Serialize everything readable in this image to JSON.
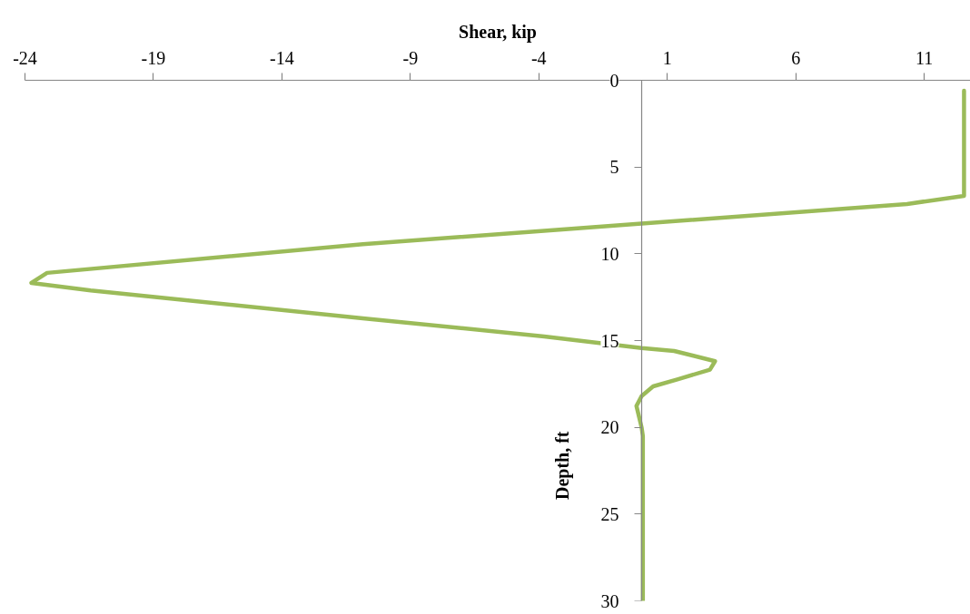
{
  "chart_data": {
    "type": "line",
    "xlabel": "Shear, kip",
    "ylabel": "Depth, ft",
    "xlim": [
      -24,
      12.8
    ],
    "xticks": [
      -24,
      -19,
      -14,
      -9,
      -4,
      1,
      6,
      11
    ],
    "ylim": [
      30,
      0
    ],
    "yticks": [
      0,
      5,
      10,
      15,
      20,
      25,
      30
    ],
    "grid": false,
    "series": [
      {
        "color": "#9bbb59",
        "x": [
          12.55,
          12.55,
          10.33,
          0,
          -10.85,
          -23.14,
          -23.75,
          -21.44,
          -10.85,
          -3.79,
          0,
          1.27,
          2.86,
          2.66,
          1.39,
          0.45,
          0,
          -0.2,
          0,
          0.05,
          0.05
        ],
        "values": [
          0.6,
          6.66,
          7.13,
          8.26,
          9.45,
          11.1,
          11.68,
          12.11,
          13.72,
          14.76,
          15.43,
          15.6,
          16.19,
          16.68,
          17.24,
          17.64,
          18.2,
          18.77,
          20.0,
          20.5,
          30
        ]
      }
    ]
  }
}
